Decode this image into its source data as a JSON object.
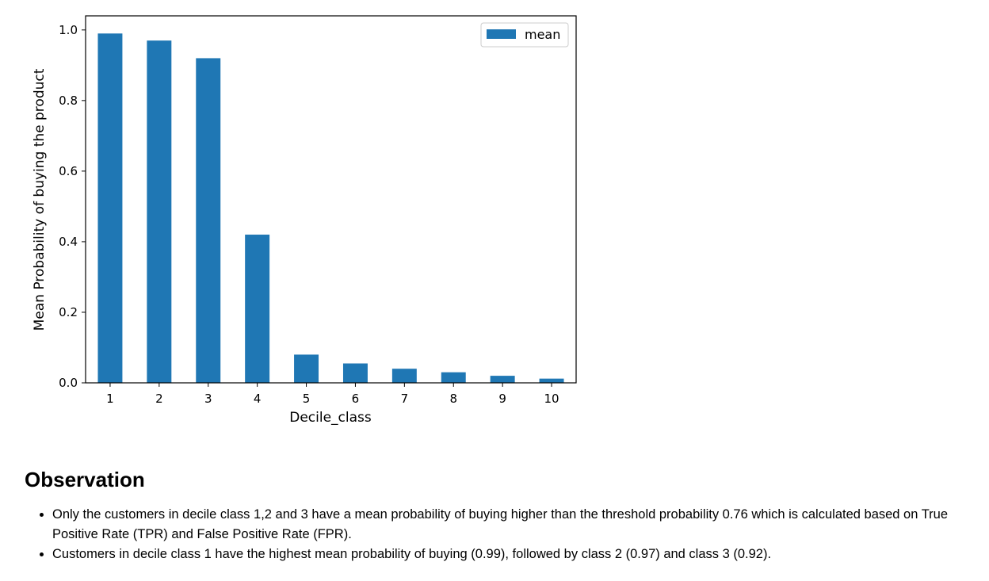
{
  "chart_data": {
    "type": "bar",
    "categories": [
      "1",
      "2",
      "3",
      "4",
      "5",
      "6",
      "7",
      "8",
      "9",
      "10"
    ],
    "series": [
      {
        "name": "mean",
        "values": [
          0.99,
          0.97,
          0.92,
          0.42,
          0.08,
          0.055,
          0.04,
          0.03,
          0.02,
          0.012
        ]
      }
    ],
    "xlabel": "Decile_class",
    "ylabel": "Mean Probability of buying the product",
    "ylim": [
      0.0,
      1.04
    ],
    "yticks": [
      "0.0",
      "0.2",
      "0.4",
      "0.6",
      "0.8",
      "1.0"
    ],
    "legend": "top-right",
    "grid": false,
    "color": "#1f77b4"
  },
  "observation": {
    "heading": "Observation",
    "bullets": [
      "Only the customers in decile class 1,2 and 3 have a mean probability of buying higher than the threshold probability 0.76 which is calculated based on True Positive Rate (TPR) and False Positive Rate (FPR).",
      "Customers in decile class 1 have the highest mean probability of buying (0.99), followed by class 2 (0.97) and class 3 (0.92)."
    ]
  }
}
